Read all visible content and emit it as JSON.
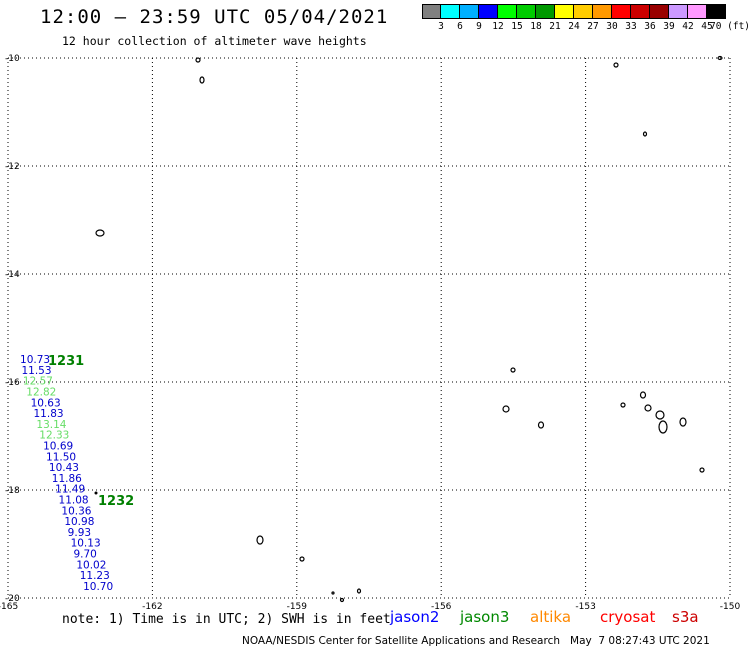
{
  "header": {
    "title": "12:00 – 23:59 UTC 05/04/2021",
    "subtitle": "12 hour collection of altimeter wave heights"
  },
  "colorbar": {
    "colors": [
      "#808080",
      "#00ffff",
      "#00b0ff",
      "#0000ff",
      "#00ff00",
      "#00cc00",
      "#009900",
      "#ffff00",
      "#ffcc00",
      "#ff9900",
      "#ff0000",
      "#cc0000",
      "#990000",
      "#cc99ff",
      "#ff99ff",
      "#000000"
    ],
    "labels": [
      "3",
      "6",
      "9",
      "12",
      "15",
      "18",
      "21",
      "24",
      "27",
      "30",
      "33",
      "36",
      "39",
      "42",
      "45",
      "70 (ft)"
    ]
  },
  "chart_data": {
    "type": "scatter",
    "xlim": [
      -165,
      -150
    ],
    "ylim": [
      -20,
      -10
    ],
    "x_ticks": [
      "-165",
      "-162",
      "-159",
      "-156",
      "-153",
      "-150"
    ],
    "y_ticks": [
      "-10",
      "-12",
      "-14",
      "-16",
      "-18",
      "-20"
    ],
    "grid": true,
    "pass_labels": [
      {
        "text": "1231",
        "color": "#008000"
      },
      {
        "text": "1232",
        "color": "#008000"
      }
    ],
    "series": [
      {
        "satellite": "jason2",
        "points": [
          {
            "lon": -164.75,
            "lat": -15.65,
            "value": "10.73",
            "color": "#0000cc"
          },
          {
            "lon": -164.72,
            "lat": -15.85,
            "value": "11.53",
            "color": "#0000cc"
          },
          {
            "lon": -164.69,
            "lat": -16.05,
            "value": "12.57",
            "color": "#66dd66"
          },
          {
            "lon": -164.62,
            "lat": -16.25,
            "value": "12.82",
            "color": "#66dd66"
          },
          {
            "lon": -164.53,
            "lat": -16.45,
            "value": "10.63",
            "color": "#0000cc"
          },
          {
            "lon": -164.47,
            "lat": -16.65,
            "value": "11.83",
            "color": "#0000cc"
          },
          {
            "lon": -164.41,
            "lat": -16.85,
            "value": "13.14",
            "color": "#66dd66"
          },
          {
            "lon": -164.35,
            "lat": -17.05,
            "value": "12.33",
            "color": "#66dd66"
          },
          {
            "lon": -164.27,
            "lat": -17.25,
            "value": "10.69",
            "color": "#0000cc"
          },
          {
            "lon": -164.21,
            "lat": -17.45,
            "value": "11.50",
            "color": "#0000cc"
          },
          {
            "lon": -164.15,
            "lat": -17.65,
            "value": "10.43",
            "color": "#0000cc"
          },
          {
            "lon": -164.09,
            "lat": -17.85,
            "value": "11.86",
            "color": "#0000cc"
          },
          {
            "lon": -164.02,
            "lat": -18.05,
            "value": "11.49",
            "color": "#0000cc"
          },
          {
            "lon": -163.95,
            "lat": -18.25,
            "value": "11.08",
            "color": "#0000cc"
          },
          {
            "lon": -163.89,
            "lat": -18.45,
            "value": "10.36",
            "color": "#0000cc"
          },
          {
            "lon": -163.83,
            "lat": -18.65,
            "value": "10.98",
            "color": "#0000cc"
          },
          {
            "lon": -163.76,
            "lat": -18.85,
            "value": "9.93",
            "color": "#0000cc"
          },
          {
            "lon": -163.7,
            "lat": -19.05,
            "value": "10.13",
            "color": "#0000cc"
          },
          {
            "lon": -163.64,
            "lat": -19.25,
            "value": "9.70",
            "color": "#0000cc"
          },
          {
            "lon": -163.58,
            "lat": -19.45,
            "value": "10.02",
            "color": "#0000cc"
          },
          {
            "lon": -163.51,
            "lat": -19.65,
            "value": "11.23",
            "color": "#0000cc"
          },
          {
            "lon": -163.44,
            "lat": -19.85,
            "value": "10.70",
            "color": "#0000cc"
          }
        ]
      }
    ],
    "satellites": [
      {
        "name": "jason2",
        "color": "#0000ff"
      },
      {
        "name": "jason3",
        "color": "#008800"
      },
      {
        "name": "altika",
        "color": "#ff8800"
      },
      {
        "name": "cryosat",
        "color": "#ff0000"
      },
      {
        "name": "s3a",
        "color": "#cc0000"
      }
    ]
  },
  "footer": {
    "note": "note: 1) Time is in UTC; 2) SWH is in feet",
    "credit": "NOAA/NESDIS Center for Satellite Applications and Research   May  7 08:27:43 UTC 2021"
  }
}
